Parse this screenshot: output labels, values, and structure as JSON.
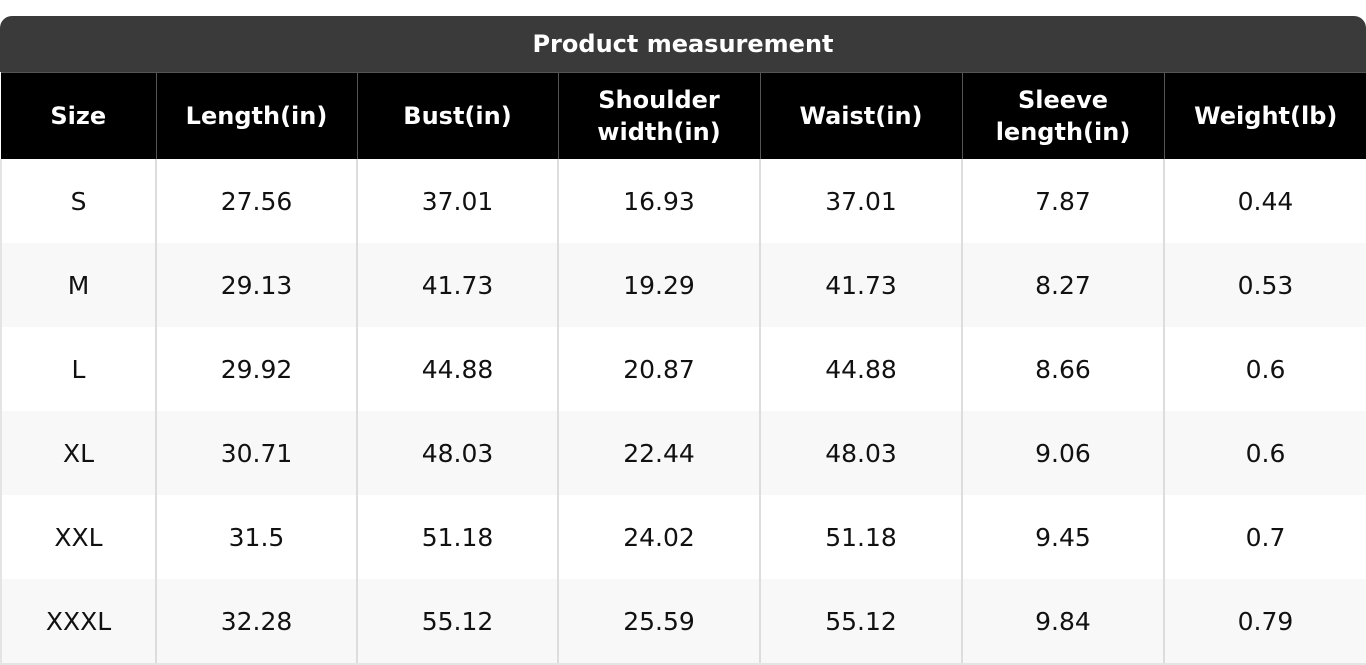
{
  "table": {
    "title": "Product measurement",
    "columns": [
      "Size",
      "Length(in)",
      "Bust(in)",
      "Shoulder width(in)",
      "Waist(in)",
      "Sleeve length(in)",
      "Weight(lb)"
    ],
    "rows": [
      [
        "S",
        "27.56",
        "37.01",
        "16.93",
        "37.01",
        "7.87",
        "0.44"
      ],
      [
        "M",
        "29.13",
        "41.73",
        "19.29",
        "41.73",
        "8.27",
        "0.53"
      ],
      [
        "L",
        "29.92",
        "44.88",
        "20.87",
        "44.88",
        "8.66",
        "0.6"
      ],
      [
        "XL",
        "30.71",
        "48.03",
        "22.44",
        "48.03",
        "9.06",
        "0.6"
      ],
      [
        "XXL",
        "31.5",
        "51.18",
        "24.02",
        "51.18",
        "9.45",
        "0.7"
      ],
      [
        "XXXL",
        "32.28",
        "55.12",
        "25.59",
        "55.12",
        "9.84",
        "0.79"
      ]
    ]
  }
}
